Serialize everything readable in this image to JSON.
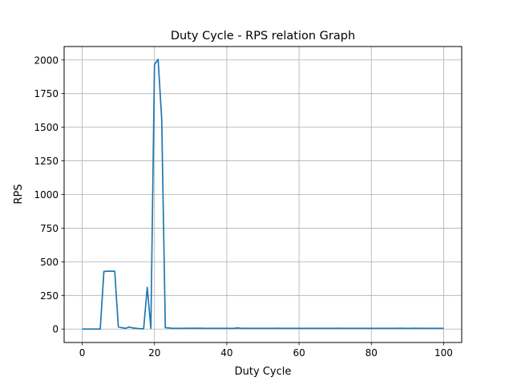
{
  "chart_data": {
    "type": "line",
    "title": "Duty Cycle - RPS relation Graph",
    "xlabel": "Duty Cycle",
    "ylabel": "RPS",
    "xlim": [
      -5,
      105
    ],
    "ylim": [
      -100,
      2100
    ],
    "grid": true,
    "line_color": "#1f77b4",
    "x_ticks": [
      0,
      20,
      40,
      60,
      80,
      100
    ],
    "x_tick_labels": [
      "0",
      "20",
      "40",
      "60",
      "80",
      "100"
    ],
    "y_ticks": [
      0,
      250,
      500,
      750,
      1000,
      1250,
      1500,
      1750,
      2000
    ],
    "y_tick_labels": [
      "0",
      "250",
      "500",
      "750",
      "1000",
      "1250",
      "1500",
      "1750",
      "2000"
    ],
    "series": [
      {
        "x": [
          0,
          1,
          2,
          3,
          4,
          5,
          6,
          7,
          8,
          9,
          10,
          11,
          12,
          13,
          14,
          15,
          16,
          17,
          18,
          19,
          20,
          21,
          22,
          23,
          24,
          25,
          26,
          27,
          28,
          29,
          30,
          31,
          32,
          33,
          34,
          35,
          36,
          37,
          38,
          39,
          40,
          41,
          42,
          43,
          44,
          45,
          46,
          47,
          48,
          49,
          50,
          51,
          52,
          53,
          54,
          55,
          56,
          57,
          58,
          59,
          60,
          61,
          62,
          63,
          64,
          65,
          66,
          67,
          68,
          69,
          70,
          71,
          72,
          73,
          74,
          75,
          76,
          77,
          78,
          79,
          80,
          81,
          82,
          83,
          84,
          85,
          86,
          87,
          88,
          89,
          90,
          91,
          92,
          93,
          94,
          95,
          96,
          97,
          98,
          99,
          100
        ],
        "y": [
          0,
          0,
          0,
          0,
          0,
          0,
          428,
          430,
          430,
          430,
          15,
          10,
          5,
          15,
          8,
          5,
          3,
          2,
          310,
          5,
          1965,
          2005,
          1560,
          10,
          8,
          5,
          5,
          5,
          5,
          6,
          6,
          6,
          6,
          6,
          5,
          5,
          5,
          5,
          5,
          5,
          5,
          5,
          5,
          8,
          5,
          5,
          5,
          5,
          5,
          5,
          5,
          5,
          5,
          5,
          6,
          5,
          5,
          5,
          5,
          5,
          5,
          5,
          5,
          5,
          5,
          5,
          5,
          5,
          5,
          5,
          5,
          6,
          5,
          5,
          5,
          5,
          5,
          5,
          5,
          5,
          5,
          5,
          5,
          5,
          5,
          5,
          5,
          5,
          6,
          5,
          5,
          5,
          6,
          5,
          5,
          5,
          5,
          5,
          5,
          5,
          6
        ]
      }
    ]
  }
}
